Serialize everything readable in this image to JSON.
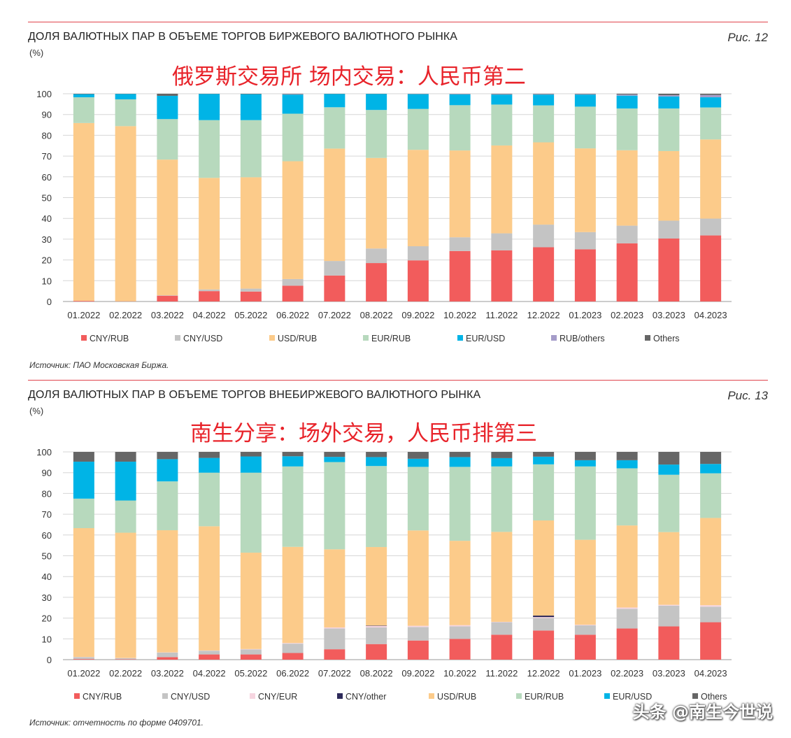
{
  "chart_data": [
    {
      "type": "bar",
      "stacked": true,
      "title": "ДОЛЯ ВАЛЮТНЫХ ПАР В ОБЪЕМЕ ТОРГОВ БИРЖЕВОГО ВАЛЮТНОГО РЫНКА",
      "units": "(%)",
      "figure_label": "Рис. 12",
      "overlay_note": "俄罗斯交易所 场内交易：人民币第二",
      "source": "Источник: ПАО Московская Биржа.",
      "ylim": [
        0,
        100
      ],
      "yticks": [
        0,
        10,
        20,
        30,
        40,
        50,
        60,
        70,
        80,
        90,
        100
      ],
      "grid": true,
      "legend_position": "bottom",
      "categories": [
        "01.2022",
        "02.2022",
        "03.2022",
        "04.2022",
        "05.2022",
        "06.2022",
        "07.2022",
        "08.2022",
        "09.2022",
        "10.2022",
        "11.2022",
        "12.2022",
        "01.2023",
        "02.2023",
        "03.2023",
        "04.2023"
      ],
      "series": [
        {
          "name": "CNY/RUB",
          "color": "#f25c5c",
          "values": [
            0.3,
            0.1,
            2.8,
            5.0,
            4.8,
            7.6,
            12.5,
            18.5,
            19.8,
            24.3,
            24.6,
            26.1,
            25.1,
            28.0,
            30.3,
            31.8
          ]
        },
        {
          "name": "CNY/USD",
          "color": "#c4c4c4",
          "values": [
            0,
            0,
            0.2,
            0.8,
            1.4,
            3.2,
            7.0,
            7.0,
            6.8,
            6.6,
            8.2,
            10.9,
            8.3,
            8.5,
            8.6,
            8.1
          ]
        },
        {
          "name": "USD/RUB",
          "color": "#fccb8a",
          "values": [
            85.6,
            84.3,
            65.3,
            53.7,
            53.6,
            56.7,
            54.1,
            43.6,
            46.4,
            41.8,
            42.3,
            39.6,
            40.3,
            36.3,
            33.5,
            38.1
          ]
        },
        {
          "name": "EUR/RUB",
          "color": "#b7d9bd",
          "values": [
            12.4,
            12.9,
            19.5,
            27.8,
            27.5,
            22.9,
            19.9,
            23.1,
            19.7,
            21.8,
            19.7,
            17.8,
            20.1,
            20.1,
            20.5,
            15.4
          ]
        },
        {
          "name": "EUR/USD",
          "color": "#00b4e6",
          "values": [
            1.5,
            2.6,
            11.2,
            12.6,
            12.5,
            9.2,
            6.4,
            7.7,
            7.1,
            5.2,
            4.8,
            5.2,
            5.8,
            6.2,
            5.8,
            4.9
          ]
        },
        {
          "name": "RUB/others",
          "color": "#a59cc9",
          "values": [
            0,
            0,
            0,
            0,
            0,
            0.2,
            0,
            0,
            0.1,
            0.2,
            0.2,
            0.2,
            0.2,
            0.5,
            0.6,
            1.1
          ]
        },
        {
          "name": "Others",
          "color": "#666666",
          "values": [
            0.2,
            0.1,
            1.0,
            0.1,
            0.2,
            0.2,
            0.1,
            0.1,
            0.1,
            0.1,
            0.2,
            0.2,
            0.2,
            0.4,
            0.7,
            0.6
          ]
        }
      ]
    },
    {
      "type": "bar",
      "stacked": true,
      "title": "ДОЛЯ ВАЛЮТНЫХ ПАР В ОБЪЕМЕ ТОРГОВ ВНЕБИРЖЕВОГО ВАЛЮТНОГО РЫНКА",
      "units": "(%)",
      "figure_label": "Рис. 13",
      "overlay_note": "南生分享：场外交易，人民币排第三",
      "source": "Источник: отчетность по форме 0409701.",
      "ylim": [
        0,
        100
      ],
      "yticks": [
        0,
        10,
        20,
        30,
        40,
        50,
        60,
        70,
        80,
        90,
        100
      ],
      "grid": true,
      "legend_position": "bottom",
      "categories": [
        "01.2022",
        "02.2022",
        "03.2022",
        "04.2022",
        "05.2022",
        "06.2022",
        "07.2022",
        "08.2022",
        "09.2022",
        "10.2022",
        "11.2022",
        "12.2022",
        "01.2023",
        "02.2023",
        "03.2023",
        "04.2023"
      ],
      "series": [
        {
          "name": "CNY/RUB",
          "color": "#f25c5c",
          "values": [
            0.3,
            0.2,
            1.2,
            2.5,
            2.5,
            3.2,
            5.0,
            7.5,
            9.2,
            10.0,
            12.0,
            14.0,
            12.0,
            15.0,
            16.0,
            18.0
          ]
        },
        {
          "name": "CNY/USD",
          "color": "#c4c4c4",
          "values": [
            0.9,
            0.5,
            2.2,
            1.8,
            2.4,
            4.5,
            10.0,
            8.0,
            6.5,
            6.0,
            6.0,
            6.0,
            4.5,
            9.5,
            10.0,
            7.5
          ]
        },
        {
          "name": "CNY/EUR",
          "color": "#f6d5e0",
          "values": [
            0.1,
            0.1,
            0.1,
            0.1,
            0.2,
            0.3,
            0.5,
            0.7,
            0.6,
            0.6,
            0.2,
            0.5,
            0.3,
            0.6,
            0.4,
            0.7
          ]
        },
        {
          "name": "CNY/other",
          "color": "#2d2a5a",
          "values": [
            0,
            0,
            0,
            0,
            0,
            0,
            0,
            0.2,
            0,
            0,
            0,
            0.7,
            0,
            0,
            0,
            0
          ]
        },
        {
          "name": "USD/RUB",
          "color": "#fccb8a",
          "values": [
            62.0,
            60.3,
            58.8,
            59.8,
            46.4,
            46.3,
            37.6,
            37.8,
            45.9,
            40.6,
            43.3,
            45.8,
            40.9,
            39.5,
            35.0,
            42.0
          ]
        },
        {
          "name": "EUR/RUB",
          "color": "#b7d9bd",
          "values": [
            14.2,
            15.5,
            23.5,
            25.8,
            38.5,
            38.7,
            42.0,
            39.0,
            30.6,
            35.6,
            31.5,
            27.0,
            35.3,
            27.5,
            27.6,
            21.5
          ]
        },
        {
          "name": "EUR/USD",
          "color": "#00b4e6",
          "values": [
            17.8,
            18.7,
            10.7,
            7.1,
            7.8,
            4.9,
            2.5,
            4.3,
            3.9,
            4.7,
            4.0,
            3.7,
            3.0,
            3.9,
            4.9,
            4.5
          ]
        },
        {
          "name": "Others",
          "color": "#666666",
          "values": [
            4.7,
            4.7,
            3.5,
            2.9,
            2.2,
            2.1,
            2.4,
            2.5,
            3.3,
            2.5,
            3.0,
            2.3,
            4.0,
            4.0,
            6.1,
            5.8
          ]
        }
      ]
    }
  ],
  "watermark": "头条 @南生今世说"
}
